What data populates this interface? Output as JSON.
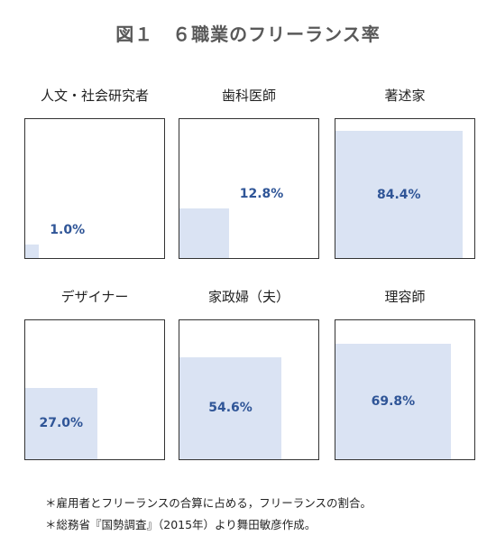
{
  "title": "図１　６職業のフリーランス率",
  "chart_data": {
    "type": "area",
    "title": "図１　６職業のフリーランス率",
    "unit": "%",
    "panels": [
      {
        "label": "人文・社会研究者",
        "value": 1.0,
        "value_text": "1.0%"
      },
      {
        "label": "歯科医師",
        "value": 12.8,
        "value_text": "12.8%"
      },
      {
        "label": "著述家",
        "value": 84.4,
        "value_text": "84.4%"
      },
      {
        "label": "デザイナー",
        "value": 27.0,
        "value_text": "27.0%"
      },
      {
        "label": "家政婦（夫）",
        "value": 54.6,
        "value_text": "54.6%"
      },
      {
        "label": "理容師",
        "value": 69.8,
        "value_text": "69.8%"
      }
    ]
  },
  "notes": [
    "＊雇用者とフリーランスの合算に占める，フリーランスの割合。",
    "＊総務省『国勢調査』（2015年）より舞田敏彦作成。"
  ],
  "colors": {
    "fill": "#dae3f3",
    "value_text": "#2f5597",
    "border": "#333333"
  }
}
